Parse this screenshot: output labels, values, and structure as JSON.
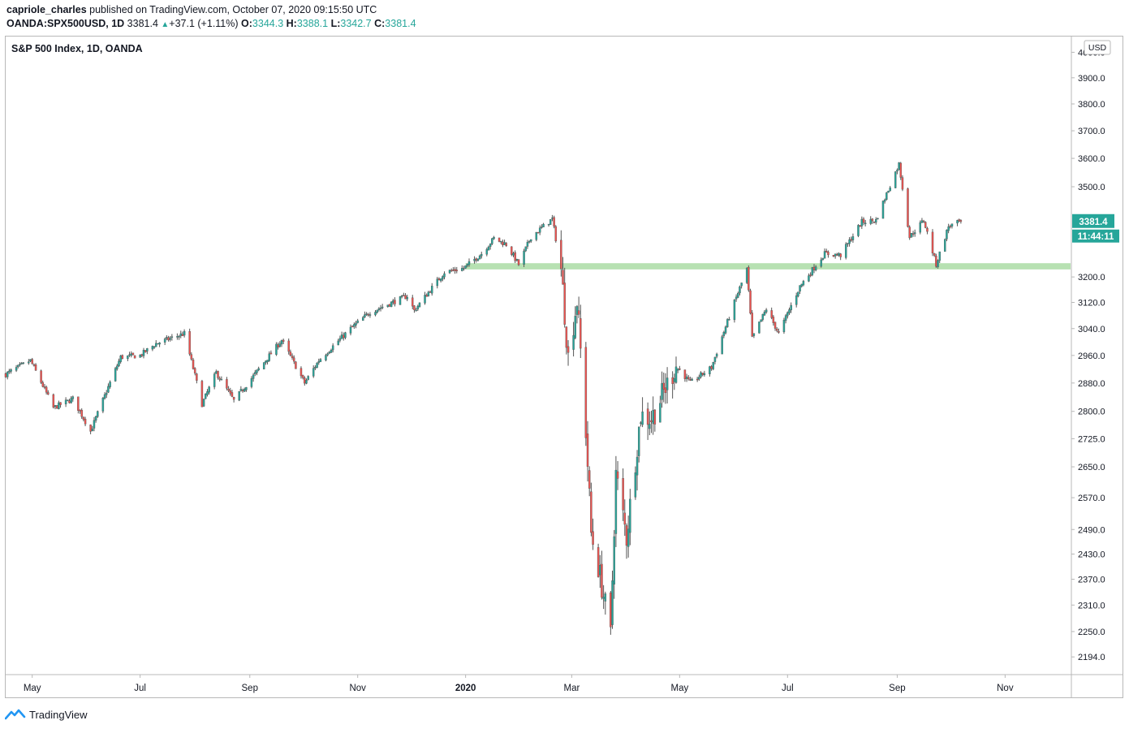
{
  "header": {
    "author": "capriole_charles",
    "published_text": "published on TradingView.com, October 07, 2020 09:15:50 UTC",
    "symbol": "OANDA:SPX500USD, 1D",
    "last": "3381.4",
    "change": "+37.1 (+1.11%)",
    "o_label": "O:",
    "o": "3344.3",
    "h_label": "H:",
    "h": "3388.1",
    "l_label": "L:",
    "l": "3342.7",
    "c_label": "C:",
    "c": "3381.4"
  },
  "footer": {
    "brand": "TradingView"
  },
  "colors": {
    "up": "#26a69a",
    "down": "#ef5350",
    "support_zone": "#b7e1b2",
    "price_label": "#26a69a",
    "axis_text": "#131722"
  },
  "chart_data": {
    "type": "candlestick",
    "title": "S&P 500 Index, 1D, OANDA",
    "currency": "USD",
    "y_scale": "log",
    "ylim": [
      2175,
      4050
    ],
    "y_ticks": [
      "4000.0",
      "3900.0",
      "3800.0",
      "3700.0",
      "3600.0",
      "3500.0",
      "3200.0",
      "3120.0",
      "3040.0",
      "2960.0",
      "2880.0",
      "2800.0",
      "2725.0",
      "2650.0",
      "2570.0",
      "2490.0",
      "2430.0",
      "2370.0",
      "2310.0",
      "2250.0",
      "2194.0"
    ],
    "x_ticks": [
      {
        "label": "May",
        "date": "2019-05-01"
      },
      {
        "label": "Jul",
        "date": "2019-07-01"
      },
      {
        "label": "Sep",
        "date": "2019-09-01"
      },
      {
        "label": "Nov",
        "date": "2019-11-01"
      },
      {
        "label": "2020",
        "date": "2020-01-01",
        "bold": true
      },
      {
        "label": "Mar",
        "date": "2020-03-01"
      },
      {
        "label": "May",
        "date": "2020-05-01"
      },
      {
        "label": "Jul",
        "date": "2020-07-01"
      },
      {
        "label": "Sep",
        "date": "2020-09-01"
      },
      {
        "label": "Nov",
        "date": "2020-11-01"
      }
    ],
    "x_range": [
      "2019-04-16",
      "2020-12-08"
    ],
    "support_zone": {
      "start": "2020-01-01",
      "low": 3224,
      "high": 3244
    },
    "last_price_label": "3381.4",
    "countdown_label": "11:44:11",
    "series_keypoints": [
      [
        "2019-04-16",
        2905
      ],
      [
        "2019-04-30",
        2945
      ],
      [
        "2019-05-13",
        2810
      ],
      [
        "2019-05-24",
        2835
      ],
      [
        "2019-06-03",
        2745
      ],
      [
        "2019-06-20",
        2955
      ],
      [
        "2019-07-01",
        2960
      ],
      [
        "2019-07-10",
        2995
      ],
      [
        "2019-07-26",
        3025
      ],
      [
        "2019-08-05",
        2820
      ],
      [
        "2019-08-13",
        2910
      ],
      [
        "2019-08-23",
        2830
      ],
      [
        "2019-09-03",
        2900
      ],
      [
        "2019-09-19",
        3005
      ],
      [
        "2019-10-02",
        2880
      ],
      [
        "2019-10-10",
        2945
      ],
      [
        "2019-10-28",
        3040
      ],
      [
        "2019-11-08",
        3090
      ],
      [
        "2019-11-29",
        3140
      ],
      [
        "2019-12-03",
        3095
      ],
      [
        "2019-12-20",
        3215
      ],
      [
        "2019-12-31",
        3228
      ],
      [
        "2020-01-10",
        3275
      ],
      [
        "2020-01-17",
        3325
      ],
      [
        "2020-01-24",
        3305
      ],
      [
        "2020-01-31",
        3240
      ],
      [
        "2020-02-07",
        3330
      ],
      [
        "2020-02-19",
        3390
      ],
      [
        "2020-02-24",
        3225
      ],
      [
        "2020-02-28",
        2955
      ],
      [
        "2020-03-04",
        3125
      ],
      [
        "2020-03-09",
        2745
      ],
      [
        "2020-03-12",
        2480
      ],
      [
        "2020-03-16",
        2400
      ],
      [
        "2020-03-23",
        2240
      ],
      [
        "2020-03-26",
        2630
      ],
      [
        "2020-04-01",
        2470
      ],
      [
        "2020-04-09",
        2790
      ],
      [
        "2020-04-15",
        2780
      ],
      [
        "2020-04-29",
        2930
      ],
      [
        "2020-05-07",
        2880
      ],
      [
        "2020-05-19",
        2925
      ],
      [
        "2020-06-08",
        3225
      ],
      [
        "2020-06-11",
        3010
      ],
      [
        "2020-06-19",
        3100
      ],
      [
        "2020-06-26",
        3025
      ],
      [
        "2020-07-08",
        3170
      ],
      [
        "2020-07-22",
        3275
      ],
      [
        "2020-07-31",
        3270
      ],
      [
        "2020-08-12",
        3380
      ],
      [
        "2020-08-20",
        3385
      ],
      [
        "2020-09-02",
        3580
      ],
      [
        "2020-09-08",
        3330
      ],
      [
        "2020-09-16",
        3385
      ],
      [
        "2020-09-23",
        3240
      ],
      [
        "2020-09-30",
        3365
      ],
      [
        "2020-10-07",
        3381
      ]
    ]
  }
}
